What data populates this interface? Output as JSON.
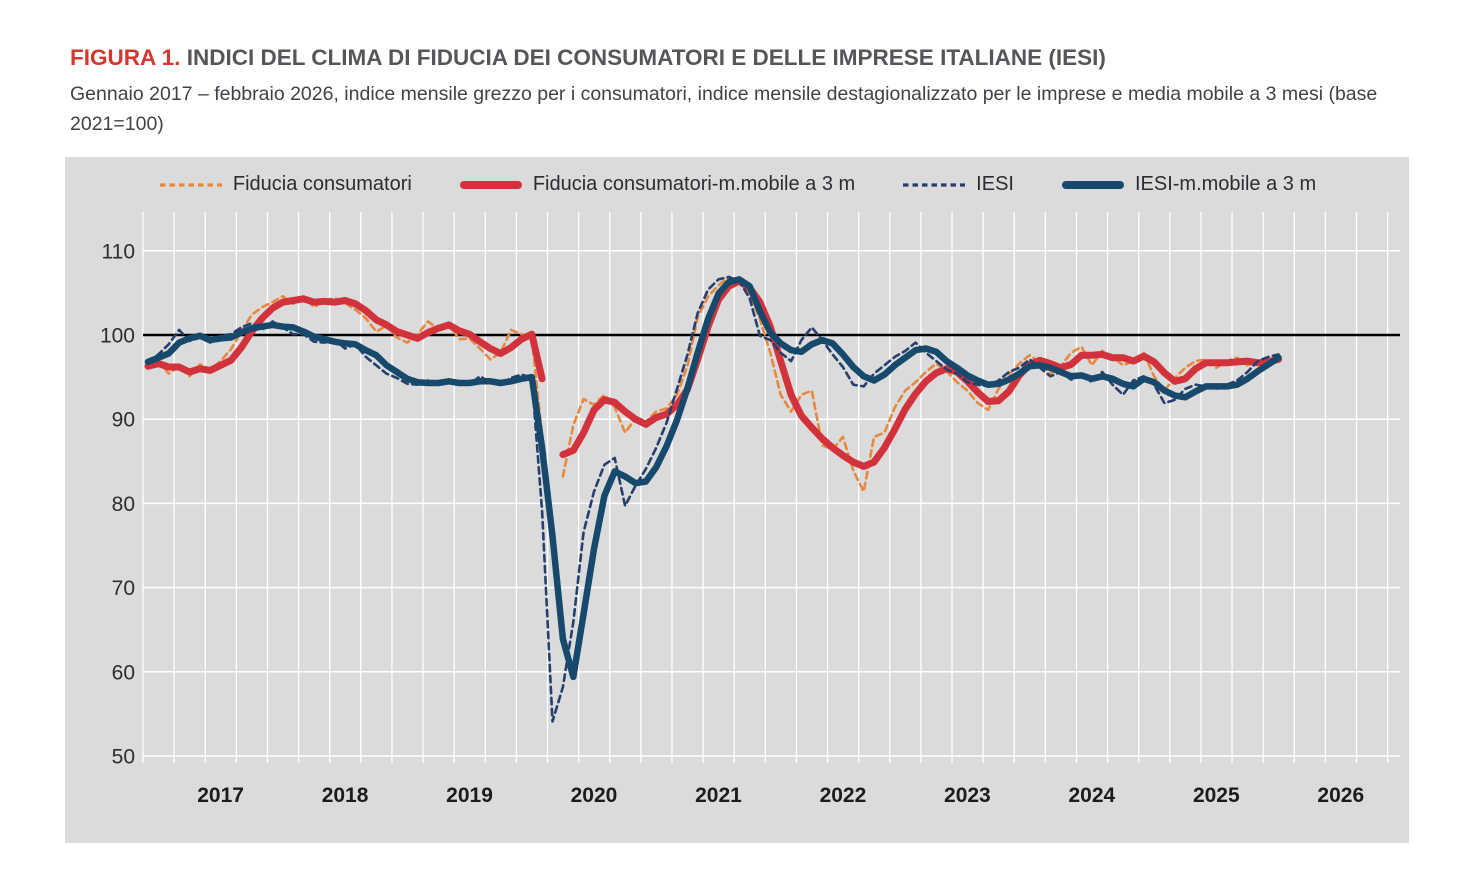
{
  "figure": {
    "label": "FIGURA 1.",
    "title": "INDICI DEL CLIMA DI FIDUCIA DEI CONSUMATORI E DELLE IMPRESE ITALIANE (IESI)",
    "subtitle": "Gennaio 2017 – febbraio 2026, indice mensile grezzo per i consumatori, indice mensile destagionalizzato per le imprese e media mobile a 3 mesi (base 2021=100)"
  },
  "chart_data": {
    "type": "line",
    "title": "Indici del clima di fiducia dei consumatori e delle imprese italiane (IESI)",
    "x_monthly_start": "2017-01",
    "x_monthly_end": "2026-02",
    "x_tick_labels": [
      "2017",
      "2018",
      "2019",
      "2020",
      "2021",
      "2022",
      "2023",
      "2024",
      "2025",
      "2026"
    ],
    "y_ticks": [
      50,
      60,
      70,
      80,
      90,
      100,
      110
    ],
    "ylim": [
      50,
      114.5
    ],
    "reference_line": 100,
    "grid": "on",
    "legend_position": "top",
    "plot_bg": "#DBDBDB",
    "grid_color": "#FFFFFF",
    "reference_line_color": "#000000",
    "series": [
      {
        "key": "fiducia-consumatori",
        "name": "Fiducia consumatori",
        "style": "dashed",
        "color": "#E6883E",
        "width": 2.6,
        "values": [
          96.3,
          96.9,
          95.4,
          96.3,
          95.1,
          96.5,
          95.9,
          96.9,
          98.3,
          100.4,
          102.4,
          103.3,
          103.9,
          104.6,
          103.7,
          104.6,
          103.3,
          104.1,
          104.4,
          103.8,
          103.0,
          102.0,
          100.4,
          101.1,
          99.7,
          99.1,
          100.1,
          101.6,
          100.7,
          101.3,
          99.5,
          99.6,
          98.4,
          97.1,
          97.9,
          100.6,
          100.1,
          99.7,
          88.0,
          null,
          83.2,
          89.3,
          92.4,
          91.7,
          92.9,
          91.4,
          88.4,
          90.1,
          89.7,
          90.9,
          91.3,
          92.9,
          96.3,
          102.1,
          104.6,
          105.9,
          106.9,
          106.3,
          104.9,
          101.9,
          97.9,
          92.9,
          90.9,
          92.9,
          93.4,
          86.9,
          86.4,
          87.9,
          83.9,
          81.4,
          87.9,
          88.4,
          91.4,
          93.4,
          94.4,
          95.6,
          96.6,
          95.7,
          94.4,
          93.4,
          91.9,
          91.1,
          93.6,
          95.3,
          96.6,
          97.6,
          96.7,
          95.4,
          96.3,
          97.9,
          98.6,
          96.4,
          98.1,
          97.4,
          96.4,
          96.9,
          97.9,
          95.1,
          93.4,
          94.9,
          96.1,
          96.9,
          97.1,
          96.1,
          96.9,
          97.3,
          96.4,
          96.9,
          97.1,
          97.4
        ]
      },
      {
        "key": "fiducia-consumatori-mm3",
        "name": "Fiducia consumatori-m.mobile a 3 m",
        "style": "solid",
        "color": "#D2323B",
        "width": 7,
        "values": [
          96.3,
          96.6,
          96.2,
          96.2,
          95.6,
          96.0,
          95.8,
          96.4,
          97.0,
          98.5,
          100.4,
          102.0,
          103.2,
          103.9,
          104.1,
          104.3,
          103.9,
          104.0,
          103.9,
          104.1,
          103.7,
          102.9,
          101.8,
          101.2,
          100.4,
          100.0,
          99.6,
          100.3,
          100.8,
          101.2,
          100.5,
          100.1,
          99.2,
          98.4,
          97.8,
          98.5,
          99.5,
          100.1,
          94.8,
          null,
          85.8,
          86.3,
          88.4,
          91.1,
          92.3,
          92.0,
          90.9,
          90.0,
          89.4,
          90.2,
          90.6,
          91.7,
          93.5,
          97.1,
          101.0,
          104.2,
          105.8,
          106.4,
          105.6,
          103.9,
          101.0,
          96.9,
          92.9,
          90.4,
          89.0,
          87.7,
          86.6,
          85.7,
          84.9,
          84.4,
          84.9,
          86.6,
          88.8,
          91.2,
          93.0,
          94.5,
          95.5,
          96.0,
          95.6,
          94.5,
          93.2,
          92.1,
          92.2,
          93.3,
          95.2,
          96.5,
          97.0,
          96.6,
          96.1,
          96.5,
          97.6,
          97.6,
          97.7,
          97.3,
          97.3,
          96.9,
          97.5,
          96.8,
          95.5,
          94.5,
          94.8,
          96.0,
          96.7,
          96.7,
          96.7,
          96.8,
          96.9,
          96.7,
          96.8,
          97.1
        ]
      },
      {
        "key": "iesi",
        "name": "IESI",
        "style": "dashed",
        "color": "#253F6E",
        "width": 2.6,
        "values": [
          96.8,
          97.7,
          98.9,
          100.6,
          99.3,
          99.7,
          99.1,
          99.9,
          100.1,
          100.9,
          101.4,
          100.6,
          101.6,
          100.9,
          100.1,
          100.1,
          99.2,
          99.1,
          99.4,
          98.4,
          98.9,
          97.4,
          96.4,
          95.4,
          94.9,
          94.2,
          94.1,
          94.6,
          94.1,
          94.7,
          94.2,
          94.1,
          95.1,
          94.4,
          94.2,
          94.9,
          95.3,
          94.9,
          79.1,
          54.1,
          58.2,
          65.9,
          76.6,
          81.4,
          84.6,
          85.4,
          79.7,
          82.1,
          84.1,
          86.6,
          89.6,
          93.6,
          97.6,
          102.6,
          105.4,
          106.6,
          106.9,
          106.4,
          104.4,
          99.9,
          99.4,
          97.9,
          96.9,
          99.4,
          100.9,
          99.4,
          97.7,
          96.2,
          94.1,
          93.9,
          95.4,
          96.4,
          97.4,
          98.1,
          99.1,
          97.9,
          96.9,
          95.9,
          95.4,
          94.4,
          94.1,
          93.9,
          94.6,
          95.6,
          96.1,
          97.1,
          96.1,
          95.1,
          95.6,
          94.7,
          95.3,
          94.4,
          95.6,
          94.1,
          92.9,
          94.6,
          95.1,
          94.1,
          91.9,
          92.3,
          93.6,
          94.1,
          93.9,
          93.6,
          94.1,
          94.6,
          95.6,
          96.9,
          97.4,
          97.7
        ]
      },
      {
        "key": "iesi-mm3",
        "name": "IESI-m.mobile a 3 m",
        "style": "solid",
        "color": "#17496C",
        "width": 6.5,
        "values": [
          96.8,
          97.3,
          97.8,
          99.1,
          99.6,
          99.9,
          99.4,
          99.6,
          99.7,
          100.3,
          100.8,
          101.0,
          101.2,
          101.0,
          100.9,
          100.4,
          99.8,
          99.5,
          99.2,
          99.0,
          98.9,
          98.2,
          97.6,
          96.4,
          95.6,
          94.8,
          94.4,
          94.3,
          94.3,
          94.5,
          94.3,
          94.3,
          94.5,
          94.5,
          94.3,
          94.5,
          94.8,
          95.0,
          86.6,
          76.1,
          63.9,
          59.4,
          66.9,
          74.6,
          80.9,
          83.8,
          83.2,
          82.4,
          82.6,
          84.3,
          86.8,
          89.9,
          93.6,
          97.9,
          101.9,
          104.9,
          106.3,
          106.6,
          105.8,
          102.8,
          100.3,
          99.0,
          98.2,
          98.0,
          98.9,
          99.4,
          99.0,
          97.7,
          96.2,
          95.1,
          94.6,
          95.3,
          96.4,
          97.3,
          98.2,
          98.4,
          98.0,
          96.9,
          96.1,
          95.2,
          94.6,
          94.1,
          94.2,
          94.7,
          95.4,
          96.3,
          96.4,
          96.1,
          95.6,
          95.1,
          95.2,
          94.8,
          95.1,
          94.8,
          94.2,
          93.9,
          94.8,
          94.4,
          93.4,
          92.8,
          92.6,
          93.3,
          93.9,
          93.9,
          93.9,
          94.1,
          94.8,
          95.7,
          96.5,
          97.3
        ]
      }
    ]
  }
}
